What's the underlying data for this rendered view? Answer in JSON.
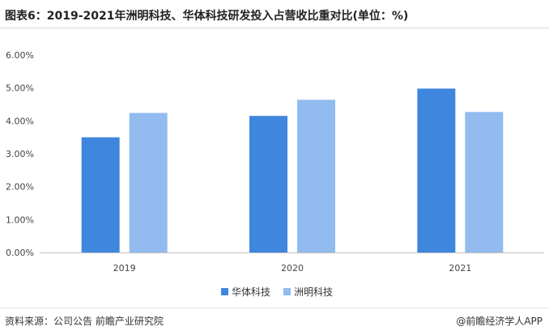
{
  "header": {
    "title": "图表6：2019-2021年洲明科技、华体科技研发投入占营收比重对比(单位：%)"
  },
  "footer": {
    "source": "资料来源：公司公告 前瞻产业研究院",
    "brand": "@前瞻经济学人APP"
  },
  "colors": {
    "series_1": "#3F86DE",
    "series_2": "#92BBEF",
    "axis": "#bfbfbf"
  },
  "chart_data": {
    "type": "bar",
    "title": "图表6：2019-2021年洲明科技、华体科技研发投入占营收比重对比(单位：%)",
    "xlabel": "",
    "ylabel": "",
    "categories": [
      "2019",
      "2020",
      "2021"
    ],
    "series": [
      {
        "name": "华体科技",
        "values": [
          3.5,
          4.15,
          4.98
        ],
        "color": "#3F86DE"
      },
      {
        "name": "洲明科技",
        "values": [
          4.24,
          4.64,
          4.27
        ],
        "color": "#92BBEF"
      }
    ],
    "ylim": [
      0,
      6
    ],
    "yticks": [
      "0.00%",
      "1.00%",
      "2.00%",
      "3.00%",
      "4.00%",
      "5.00%",
      "6.00%"
    ],
    "grid": false,
    "legend_position": "bottom-center"
  }
}
